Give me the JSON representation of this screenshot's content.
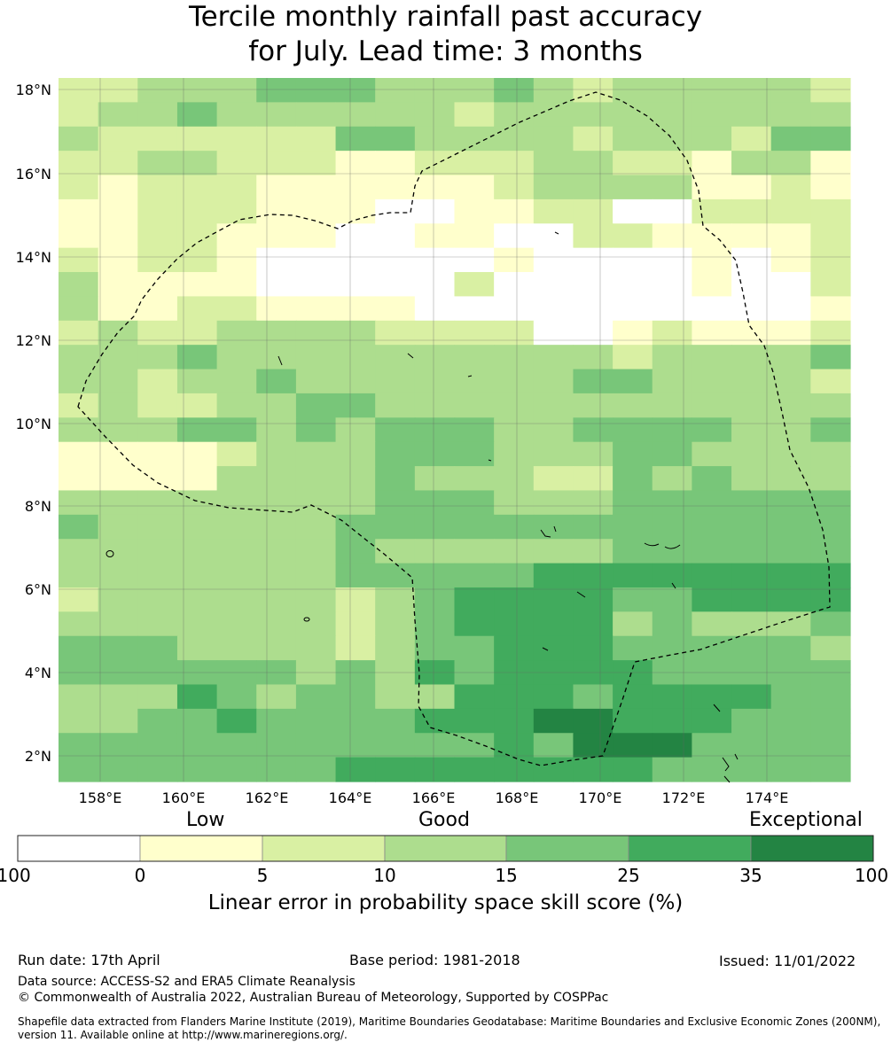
{
  "title_line1": "Tercile monthly rainfall past accuracy",
  "title_line2": "for July. Lead time: 3 months",
  "map": {
    "lat_labels": [
      "18°N",
      "16°N",
      "14°N",
      "12°N",
      "10°N",
      "8°N",
      "6°N",
      "4°N",
      "2°N"
    ],
    "lon_labels": [
      "158°E",
      "160°E",
      "162°E",
      "164°E",
      "166°E",
      "168°E",
      "170°E",
      "172°E",
      "174°E"
    ],
    "grid": [
      "22333444333432333332",
      "23343333332333333333",
      "32222224433332333244",
      "22332221122233221331",
      "21222111111233331121",
      "11222111001122002222",
      "11221110011002211112",
      "21221000000100001012",
      "31111000002000001002",
      "31122111100000000001",
      "23223333222200121112",
      "33343333333333233334",
      "33233433333334433332",
      "23223344333333333333",
      "33344343444334444334",
      "11112333444333443333",
      "11113333433322434333",
      "33333333444333444444",
      "43333334444444444444",
      "33333334333333444444",
      "33333334444455555555",
      "23333332345555445555",
      "33333332345555343334",
      "44433332344555444443",
      "44444434354555544444",
      "33354344335554555544",
      "33445444455566555444",
      "44444444444546664444",
      "44444445555555544444"
    ]
  },
  "colorbar": {
    "categories": [
      "Low",
      "Good",
      "Exceptional"
    ],
    "ticks": [
      "-100",
      "0",
      "5",
      "10",
      "15",
      "25",
      "35",
      "100"
    ],
    "colors": [
      "#ffffff",
      "#ffffcc",
      "#d9f0a3",
      "#addd8e",
      "#78c679",
      "#41ab5d",
      "#238443"
    ],
    "title": "Linear error in probability space skill score (%)"
  },
  "footer": {
    "run_date": "Run date: 17th April",
    "base_period": "Base period: 1981-2018",
    "issued": "Issued: 11/01/2022",
    "data_source": "Data source: ACCESS-S2 and ERA5 Climate Reanalysis",
    "copyright": "© Commonwealth of Australia 2022, Australian Bureau of Meteorology, Supported by COSPPac",
    "shapefile": "Shapefile data extracted from Flanders Marine Institute (2019), Maritime Boundaries Geodatabase: Maritime Boundaries and Exclusive Economic Zones (200NM), version 11. Available online at http://www.marineregions.org/."
  }
}
